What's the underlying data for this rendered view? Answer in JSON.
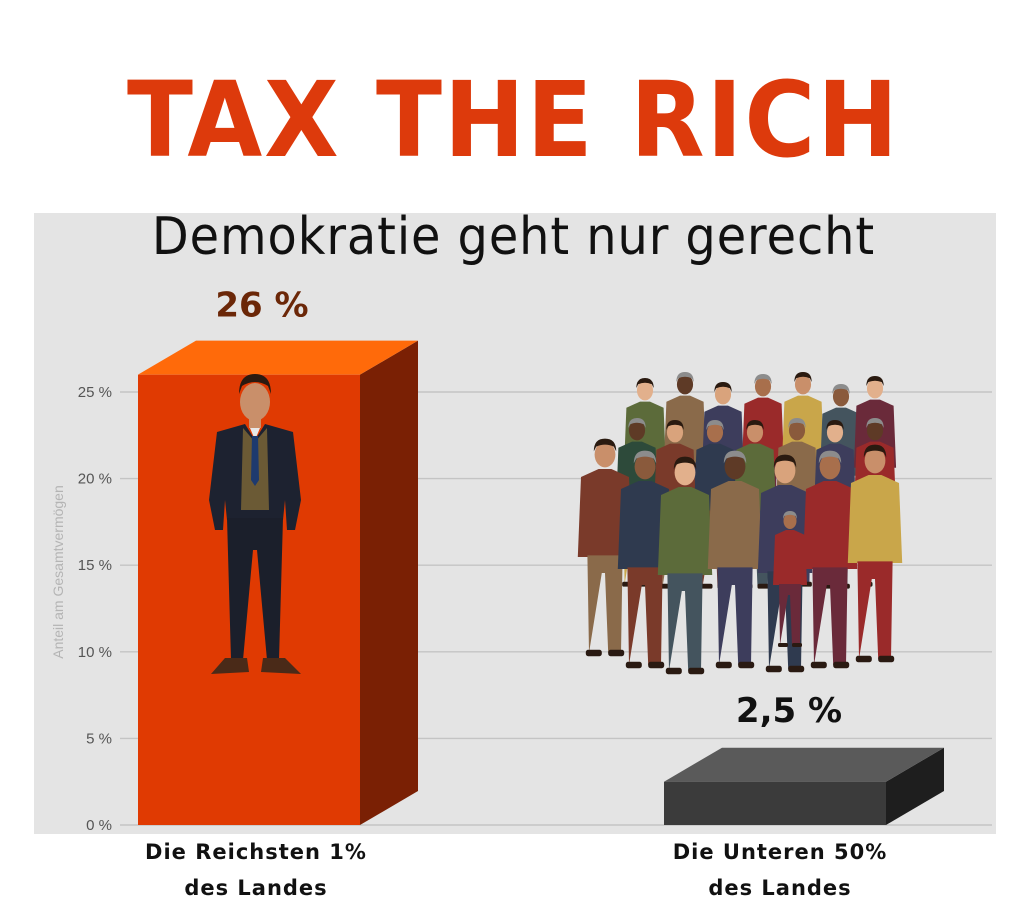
{
  "header": {
    "title": "TAX THE RICH",
    "subtitle": "Demokratie geht nur gerecht"
  },
  "colors": {
    "title": "#dd3a0c",
    "bar_rich_front": "#e03a02",
    "bar_rich_top": "#ff6a0a",
    "bar_rich_side": "#7a2004",
    "bar_poor_front": "#3b3b3b",
    "bar_poor_top": "#5a5a5a",
    "bar_poor_side": "#1e1e1e",
    "chart_background": "#e4e4e4",
    "gridline": "#c4c4c4"
  },
  "chart_data": {
    "type": "bar",
    "title": "",
    "xlabel": "",
    "ylabel": "Anteil am Gesamtvermögen",
    "ylim": [
      0,
      25
    ],
    "yticks": [
      0,
      5,
      10,
      15,
      20,
      25
    ],
    "ytick_labels": [
      "0 %",
      "5 %",
      "10 %",
      "15 %",
      "20 %",
      "25 %"
    ],
    "grid": true,
    "categories": [
      {
        "line1": "Die Reichsten  1%",
        "line2": "des Landes"
      },
      {
        "line1": "Die Unteren 50%",
        "line2": "des Landes"
      }
    ],
    "values": [
      26,
      2.5
    ],
    "data_labels": [
      "26 %",
      "2,5 %"
    ],
    "illustrations": [
      "businessman-illustration",
      "crowd-illustration"
    ]
  }
}
